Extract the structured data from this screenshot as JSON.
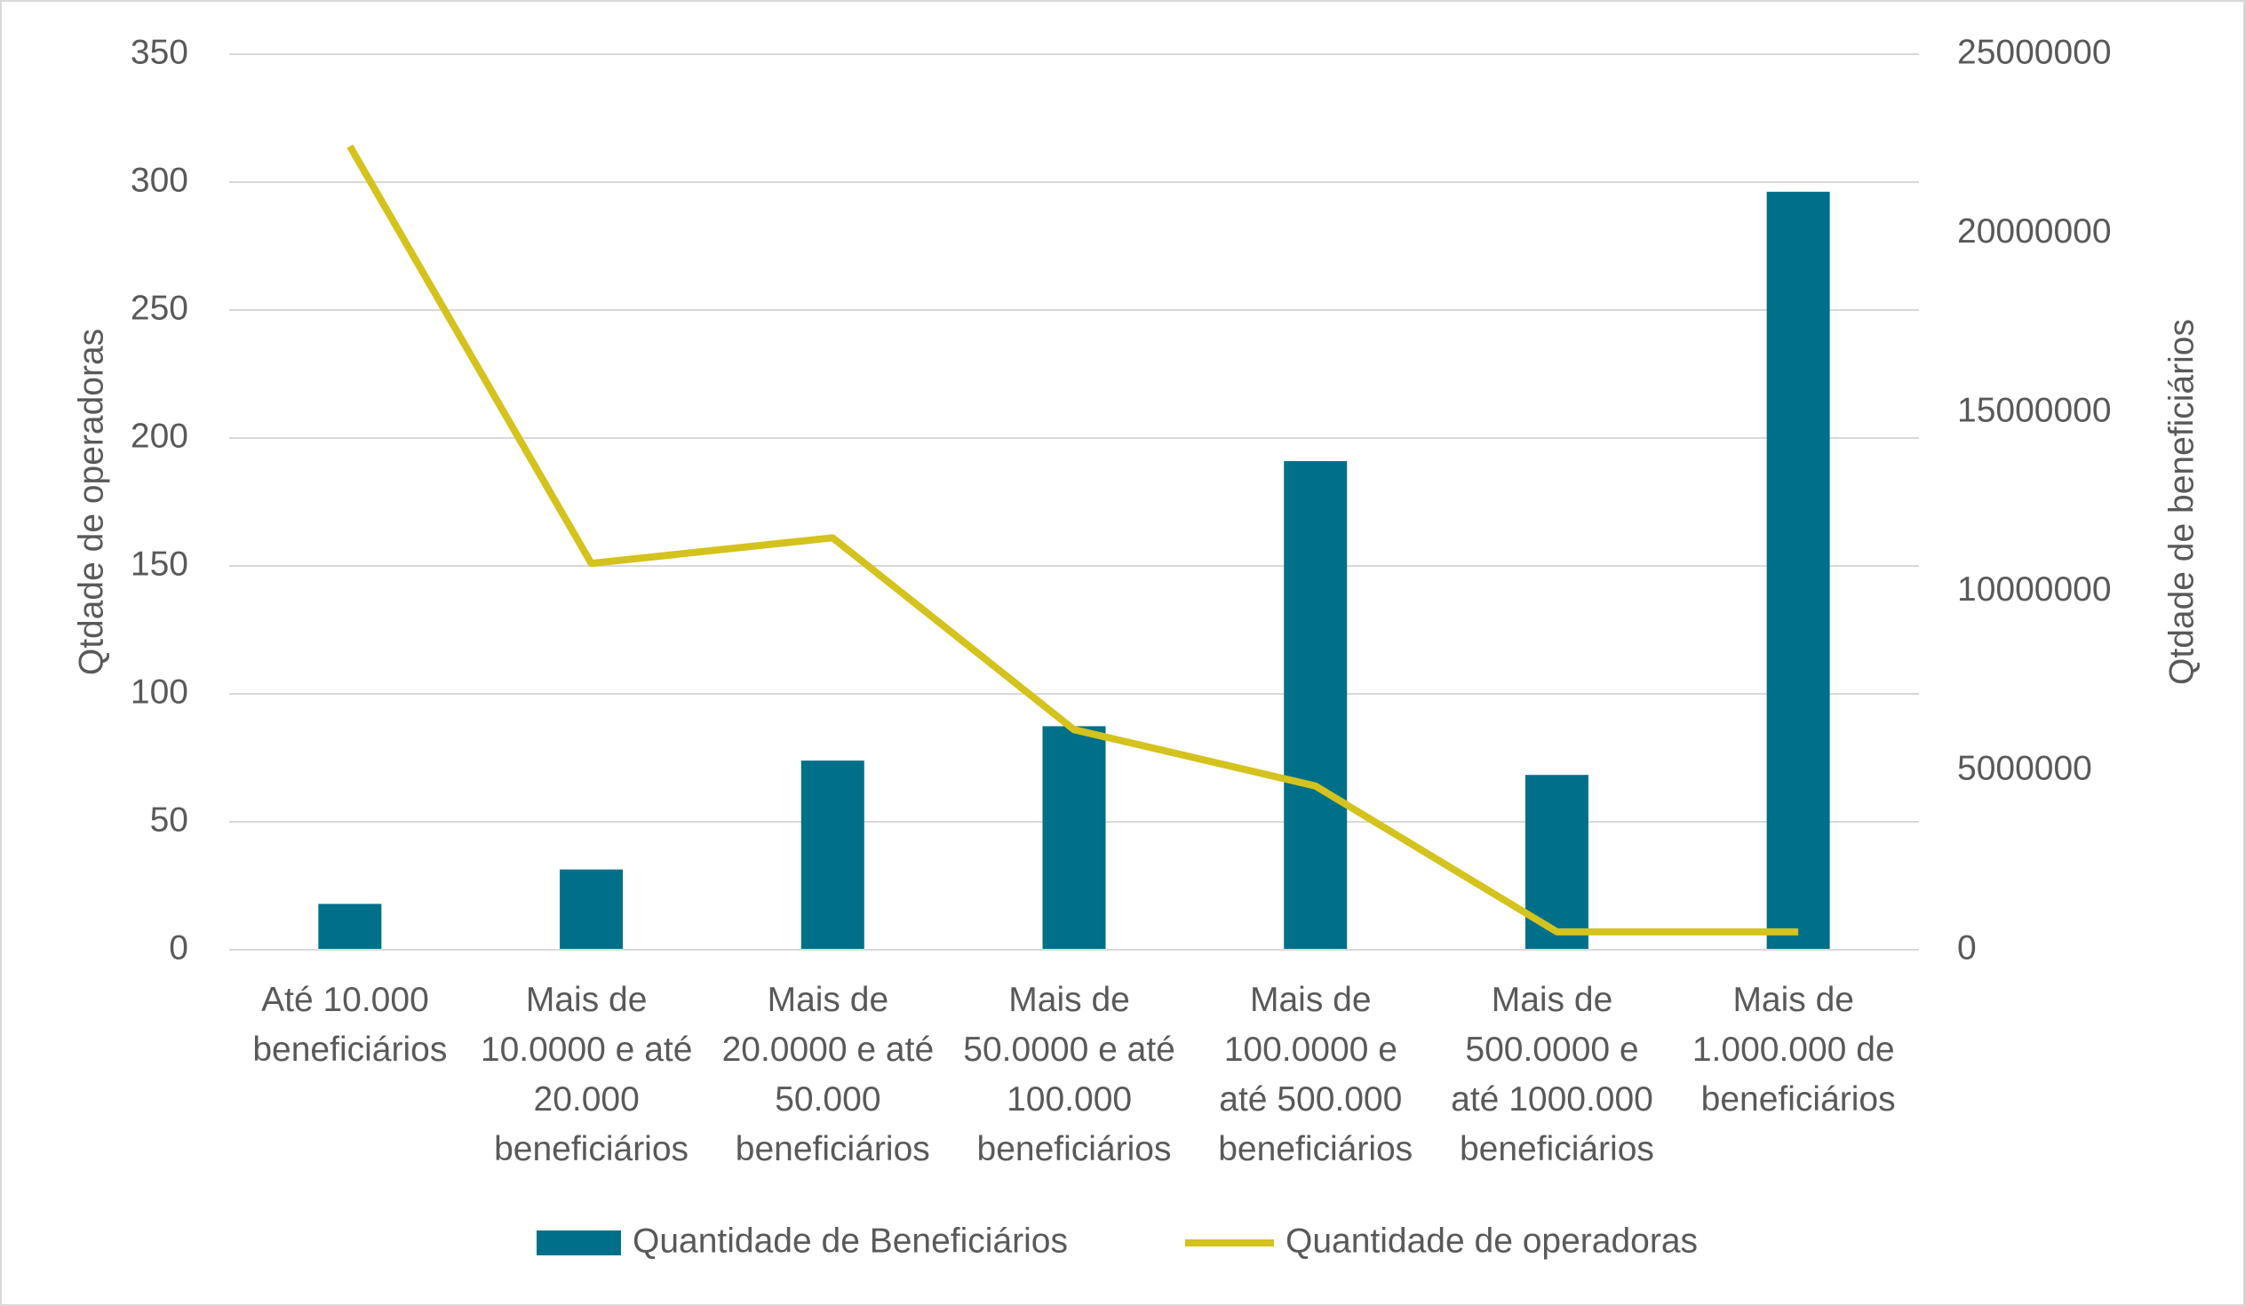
{
  "chart_data": {
    "type": "bar-line",
    "categories": [
      "Até 10.000 beneficiários",
      "Mais de 10.0000 e até 20.000 beneficiários",
      "Mais de 20.0000 e até 50.000 beneficiários",
      "Mais de 50.0000 e até 100.000 beneficiários",
      "Mais de 100.0000 e até 500.000 beneficiários",
      "Mais de 500.0000 e até 1000.000 beneficiários",
      "Mais de 1.000.000 de beneficiários"
    ],
    "series": [
      {
        "name": "Quantidade de Beneficiários",
        "type": "bar",
        "axis": "y2",
        "color": "#00708a",
        "values": [
          1280000,
          2240000,
          5280000,
          6240000,
          13640000,
          4880000,
          21160000
        ]
      },
      {
        "name": "Quantidade de operadoras",
        "type": "line",
        "axis": "y",
        "color": "#d4c21d",
        "values": [
          314,
          151,
          161,
          86,
          64,
          7,
          7
        ]
      }
    ],
    "ylabel": "Qtdade de operadoras",
    "y2label": "Qtdade de beneficiários",
    "ylim": [
      0,
      350
    ],
    "yticks": [
      0,
      50,
      100,
      150,
      200,
      250,
      300,
      350
    ],
    "y2lim": [
      0,
      25000000
    ],
    "y2ticks": [
      0,
      5000000,
      10000000,
      15000000,
      20000000,
      25000000
    ],
    "grid": true,
    "legend": "bottom"
  }
}
